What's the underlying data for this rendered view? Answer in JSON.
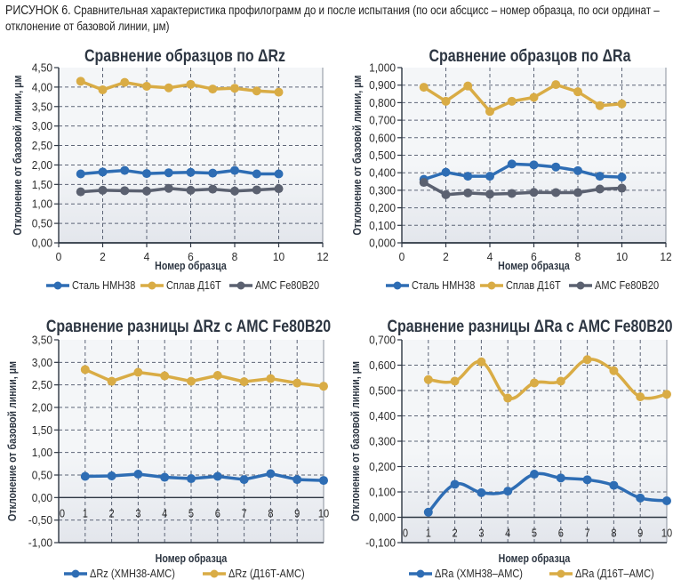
{
  "caption": {
    "prefix": "РИСУНОК 6.",
    "text": " Сравнительная характеристика профилограмм до и после испытания (по оси абсцисс – номер образца, по оси ординат – отклонение от базовой линии, μм)"
  },
  "colors": {
    "blue": "#2e6db4",
    "gold": "#d9ac45",
    "gray": "#5b6170",
    "grid": "#5d6577",
    "axis": "#2d3642",
    "plot_bg_top": "#f4f6f8",
    "plot_bg_bottom": "#e3e6ec"
  },
  "chart_data": [
    {
      "type": "line",
      "title": "Сравнение образцов по ΔRz",
      "xlabel": "Номер образца",
      "ylabel": "Отклонение от базовой линии, μм",
      "xlim": [
        0,
        12
      ],
      "ylim": [
        0,
        4.5
      ],
      "xticks": [
        "0",
        "2",
        "4",
        "6",
        "8",
        "10",
        "12"
      ],
      "xtick_values": [
        0,
        2,
        4,
        6,
        8,
        10,
        12
      ],
      "yticks": [
        "0,00",
        "0,50",
        "1,00",
        "1,50",
        "2,00",
        "2,50",
        "3,00",
        "3,50",
        "4,00",
        "4,50"
      ],
      "ytick_values": [
        0,
        0.5,
        1,
        1.5,
        2,
        2.5,
        3,
        3.5,
        4,
        4.5
      ],
      "grid": true,
      "smooth": false,
      "legend_position": "bottom",
      "x": [
        1,
        2,
        3,
        4,
        5,
        6,
        7,
        8,
        9,
        10
      ],
      "series": [
        {
          "name": "Сталь НМН38",
          "color": "blue",
          "values": [
            1.77,
            1.82,
            1.86,
            1.78,
            1.8,
            1.81,
            1.79,
            1.86,
            1.77,
            1.77
          ]
        },
        {
          "name": "Сплав Д16Т",
          "color": "gold",
          "values": [
            4.15,
            3.93,
            4.12,
            4.02,
            3.98,
            4.07,
            3.95,
            3.97,
            3.9,
            3.87
          ]
        },
        {
          "name": "АМС Fe80B20",
          "color": "gray",
          "values": [
            1.31,
            1.35,
            1.34,
            1.33,
            1.4,
            1.35,
            1.38,
            1.33,
            1.36,
            1.39
          ]
        }
      ]
    },
    {
      "type": "line",
      "title": "Сравнение образцов по ΔRa",
      "xlabel": "Номер образца",
      "ylabel": "Отклонение от базовой линии, μм",
      "xlim": [
        0,
        12
      ],
      "ylim": [
        0,
        1.0
      ],
      "xticks": [
        "0",
        "2",
        "4",
        "6",
        "8",
        "10",
        "12"
      ],
      "xtick_values": [
        0,
        2,
        4,
        6,
        8,
        10,
        12
      ],
      "yticks": [
        "0,000",
        "0,100",
        "0,200",
        "0,300",
        "0,400",
        "0,500",
        "0,600",
        "0,700",
        "0,800",
        "0,900",
        "1,000"
      ],
      "ytick_values": [
        0,
        0.1,
        0.2,
        0.3,
        0.4,
        0.5,
        0.6,
        0.7,
        0.8,
        0.9,
        1.0
      ],
      "grid": true,
      "smooth": false,
      "legend_position": "bottom",
      "x": [
        1,
        2,
        3,
        4,
        5,
        6,
        7,
        8,
        9,
        10
      ],
      "series": [
        {
          "name": "Сталь НМН38",
          "color": "blue",
          "values": [
            0.362,
            0.403,
            0.38,
            0.38,
            0.45,
            0.445,
            0.433,
            0.412,
            0.38,
            0.375
          ]
        },
        {
          "name": "Сплав Д16Т",
          "color": "gold",
          "values": [
            0.888,
            0.808,
            0.895,
            0.75,
            0.808,
            0.83,
            0.903,
            0.862,
            0.783,
            0.793
          ]
        },
        {
          "name": "АМС Fe80B20",
          "color": "gray",
          "values": [
            0.345,
            0.275,
            0.285,
            0.278,
            0.282,
            0.288,
            0.287,
            0.287,
            0.307,
            0.312
          ]
        }
      ]
    },
    {
      "type": "line",
      "title": "Сравнение разницы ΔRz с АМС Fe80B20",
      "xlabel": "Номер образца",
      "ylabel": "Отклонение от базовой линии, μм",
      "xlim": [
        0,
        10
      ],
      "ylim": [
        -1.0,
        3.5
      ],
      "xticks": [
        "0",
        "1",
        "2",
        "3",
        "4",
        "5",
        "6",
        "7",
        "8",
        "9",
        "10"
      ],
      "xtick_values": [
        0,
        1,
        2,
        3,
        4,
        5,
        6,
        7,
        8,
        9,
        10
      ],
      "yticks": [
        "-1,00",
        "-0,50",
        "0,00",
        "0,50",
        "1,00",
        "1,50",
        "2,00",
        "2,50",
        "3,00",
        "3,50"
      ],
      "ytick_values": [
        -1,
        -0.5,
        0,
        0.5,
        1,
        1.5,
        2,
        2.5,
        3,
        3.5
      ],
      "grid": true,
      "smooth": false,
      "legend_position": "bottom",
      "x": [
        1,
        2,
        3,
        4,
        5,
        6,
        7,
        8,
        9,
        10
      ],
      "series": [
        {
          "name": "ΔRz (ХМН38-АМС)",
          "color": "blue",
          "values": [
            0.47,
            0.48,
            0.52,
            0.45,
            0.42,
            0.47,
            0.4,
            0.53,
            0.4,
            0.38
          ]
        },
        {
          "name": "ΔRz (Д16Т-АМС)",
          "color": "gold",
          "values": [
            2.84,
            2.58,
            2.78,
            2.7,
            2.58,
            2.71,
            2.57,
            2.64,
            2.54,
            2.47
          ]
        }
      ]
    },
    {
      "type": "line",
      "title": "Сравнение разницы ΔRa с АМС Fe80B20",
      "xlabel": "Номер образца",
      "ylabel": "Отклонение от базовой линии, μм",
      "xlim": [
        0,
        10
      ],
      "ylim": [
        -0.1,
        0.7
      ],
      "xticks": [
        "0",
        "1",
        "2",
        "3",
        "4",
        "5",
        "6",
        "7",
        "8",
        "9",
        "10"
      ],
      "xtick_values": [
        0,
        1,
        2,
        3,
        4,
        5,
        6,
        7,
        8,
        9,
        10
      ],
      "yticks": [
        "-0,100",
        "0,000",
        "0,100",
        "0,200",
        "0,300",
        "0,400",
        "0,500",
        "0,600",
        "0,700"
      ],
      "ytick_values": [
        -0.1,
        0,
        0.1,
        0.2,
        0.3,
        0.4,
        0.5,
        0.6,
        0.7
      ],
      "grid": true,
      "smooth": true,
      "legend_position": "bottom",
      "x": [
        1,
        2,
        3,
        4,
        5,
        6,
        7,
        8,
        9,
        10
      ],
      "series": [
        {
          "name": "ΔRa (ХМН38–АМС)",
          "color": "blue",
          "values": [
            0.02,
            0.13,
            0.097,
            0.103,
            0.17,
            0.155,
            0.148,
            0.126,
            0.076,
            0.065
          ]
        },
        {
          "name": "ΔRa (Д16Т–АМС)",
          "color": "gold",
          "values": [
            0.543,
            0.537,
            0.613,
            0.47,
            0.53,
            0.537,
            0.622,
            0.578,
            0.475,
            0.485
          ]
        }
      ]
    }
  ]
}
